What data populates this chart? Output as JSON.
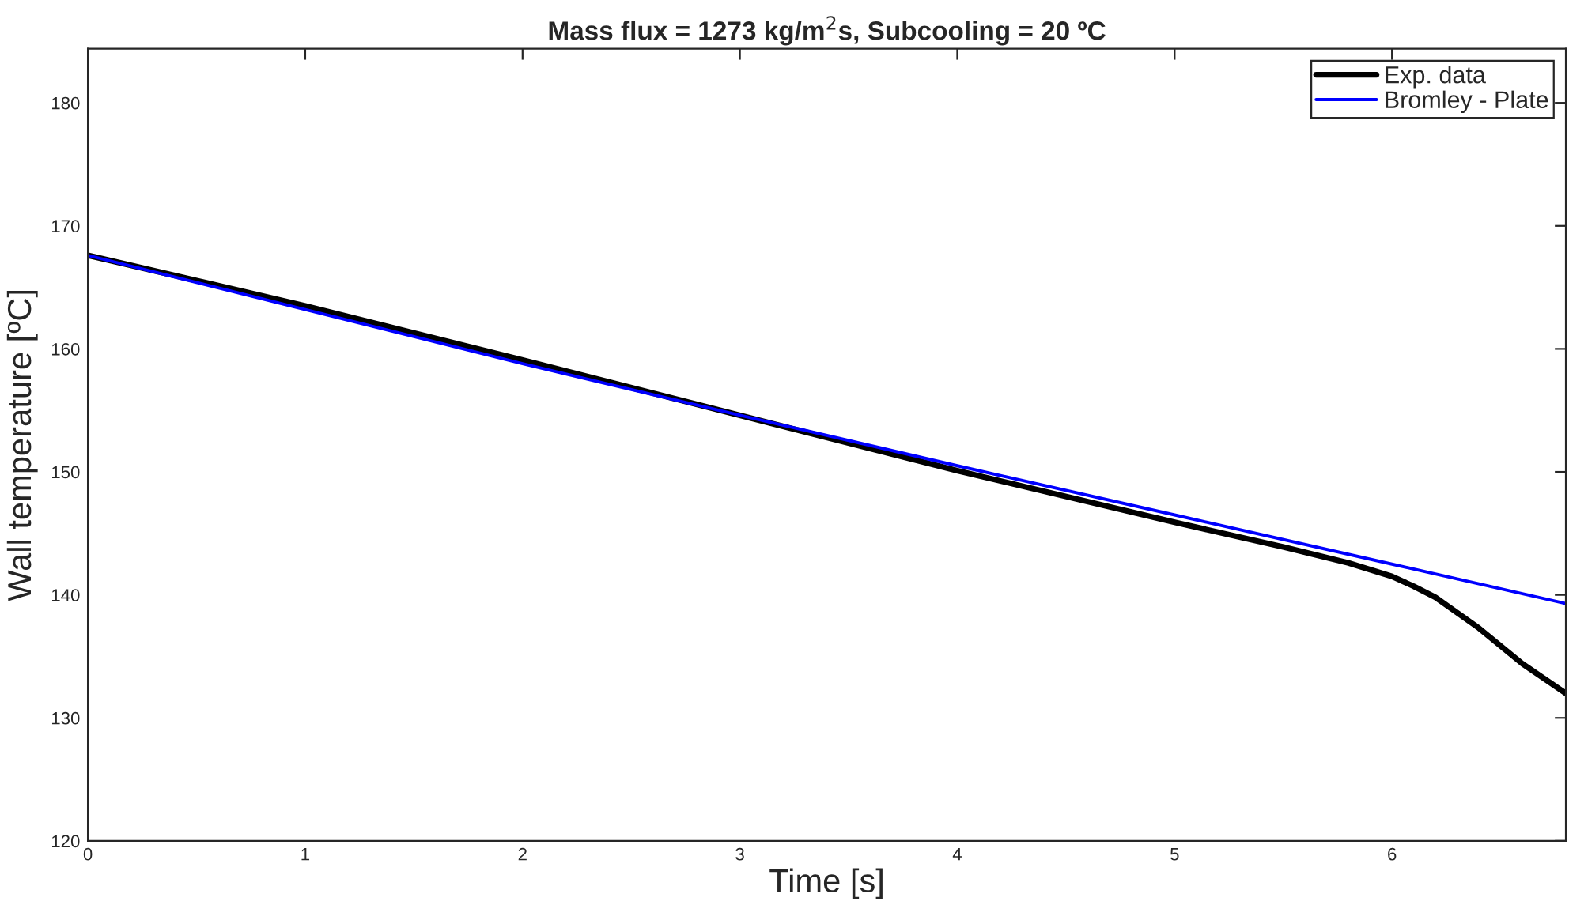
{
  "chart_data": {
    "type": "line",
    "title": "Mass flux = 1273 kg/m$^{2}$s, Subcooling = 20 ºC",
    "xlabel": "Time [s]",
    "ylabel": "Wall temperature [ºC]",
    "xlim": [
      0,
      6.8
    ],
    "xticks": [
      0,
      1,
      2,
      3,
      4,
      5,
      6
    ],
    "ylim": [
      120,
      184.4
    ],
    "yticks": [
      120,
      130,
      140,
      150,
      160,
      170,
      180
    ],
    "grid": false,
    "legend": "top right",
    "line_style": "solid",
    "marker": "none",
    "series": [
      {
        "name": "Exp. data",
        "color": "#000000",
        "x": [
          0,
          1,
          2,
          3,
          4,
          5,
          5.5,
          5.8,
          6,
          6.1,
          6.2,
          6.4,
          6.6,
          6.8
        ],
        "values": [
          167.6,
          163.5,
          159.1,
          154.6,
          150.1,
          145.9,
          143.9,
          142.6,
          141.5,
          140.7,
          139.8,
          137.3,
          134.4,
          132.0
        ]
      },
      {
        "name": "Bromley - Plate",
        "color": "#0000ff",
        "x": [
          0,
          1,
          2,
          3,
          4,
          5,
          6,
          6.8
        ],
        "values": [
          167.6,
          163.2,
          158.8,
          154.6,
          150.5,
          146.5,
          142.5,
          139.3
        ]
      }
    ]
  }
}
